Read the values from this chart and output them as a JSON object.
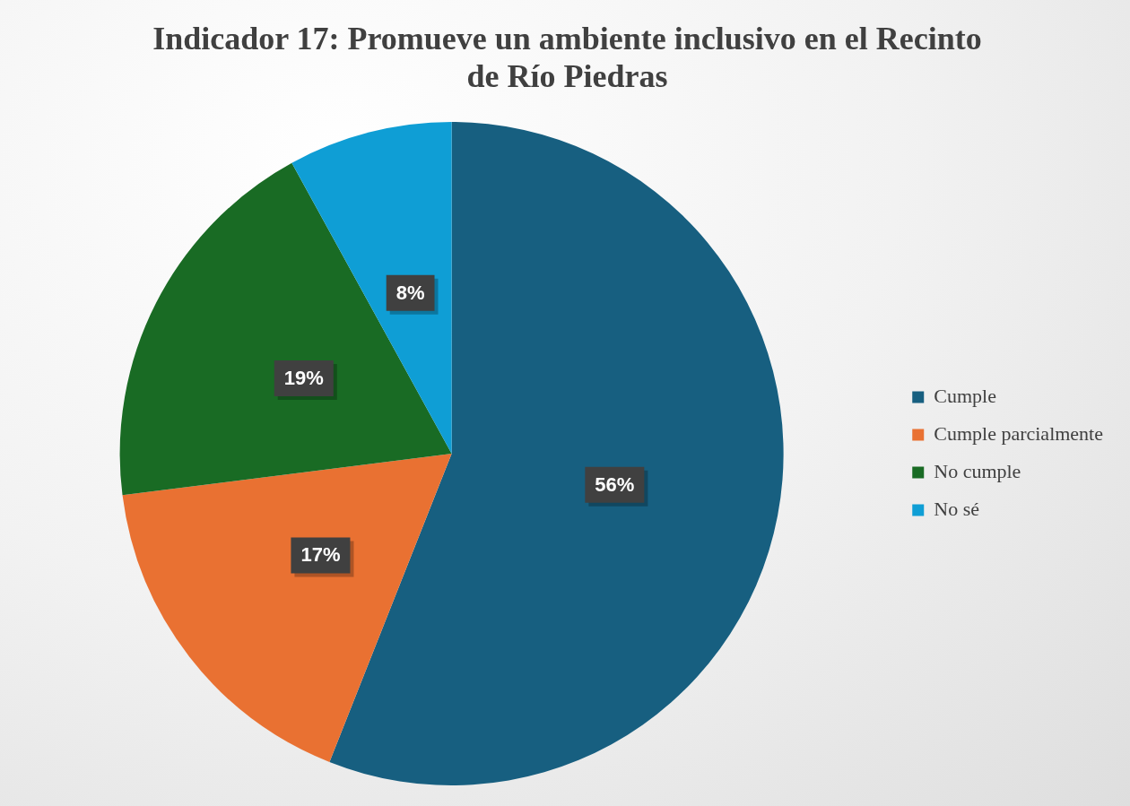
{
  "chart_data": {
    "type": "pie",
    "title": "Indicador 17: Promueve un ambiente inclusivo en el Recinto de Río Piedras",
    "categories": [
      "Cumple",
      "Cumple parcialmente",
      "No cumple",
      "No sé"
    ],
    "values": [
      56,
      17,
      19,
      8
    ],
    "colors": [
      "#175f80",
      "#e97132",
      "#196b24",
      "#0f9ed5"
    ],
    "value_labels": [
      "56%",
      "17%",
      "19%",
      "8%"
    ],
    "legend": "right"
  }
}
